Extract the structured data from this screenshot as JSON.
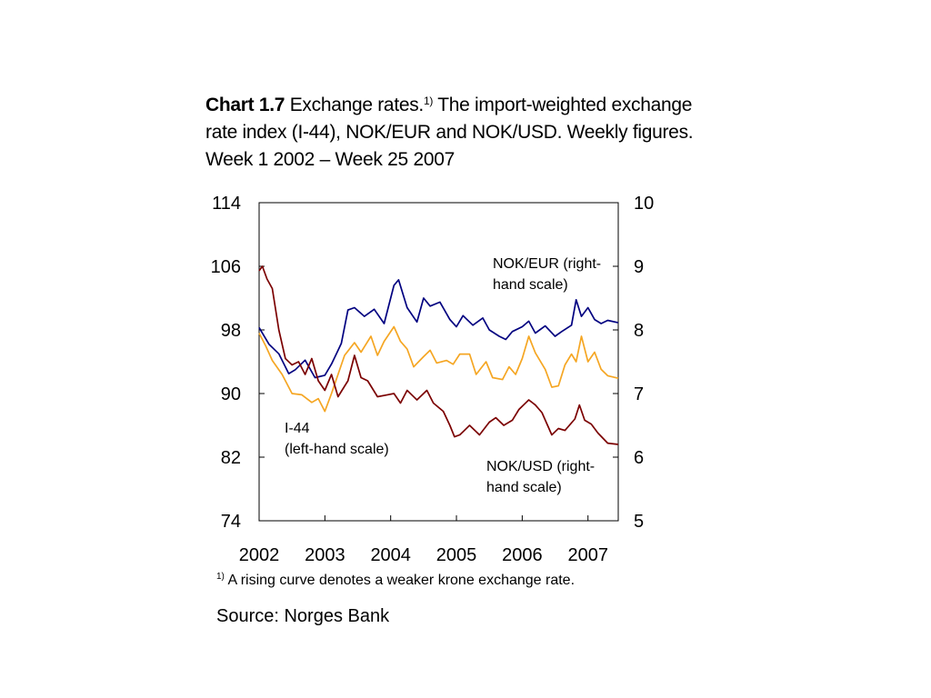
{
  "title": {
    "bold": "Chart 1.7",
    "main": " Exchange rates.",
    "sup": "1)",
    "rest": " The import-weighted exchange rate index (I-44), NOK/EUR and NOK/USD. Weekly figures. Week 1 2002 – Week 25 2007"
  },
  "footnote": {
    "sup": "1)",
    "text": " A rising curve denotes a weaker krone exchange rate."
  },
  "source": "Source: Norges Bank",
  "chart_data": {
    "type": "line",
    "x_axis": {
      "ticks": [
        "2002",
        "2003",
        "2004",
        "2005",
        "2006",
        "2007"
      ],
      "range": [
        2002.0,
        2007.46
      ]
    },
    "y_left": {
      "range": [
        74,
        114
      ],
      "ticks": [
        "74",
        "82",
        "90",
        "98",
        "106",
        "114"
      ]
    },
    "y_right": {
      "range": [
        5,
        10
      ],
      "ticks": [
        "5",
        "6",
        "7",
        "8",
        "9",
        "10"
      ]
    },
    "grid": false,
    "annotations": [
      {
        "lines": [
          "NOK/EUR (right-",
          "hand scale)"
        ],
        "series": "NOK/EUR"
      },
      {
        "lines": [
          "I-44",
          "(left-hand scale)"
        ],
        "series": "I-44"
      },
      {
        "lines": [
          "NOK/USD (right-",
          "hand scale)"
        ],
        "series": "NOK/USD"
      }
    ],
    "series": [
      {
        "axis": "left",
        "color": "#000080",
        "x": [
          2002.0,
          2002.15,
          2002.3,
          2002.45,
          2002.55,
          2002.7,
          2002.85,
          2003.0,
          2003.1,
          2003.25,
          2003.35,
          2003.45,
          2003.6,
          2003.75,
          2003.9,
          2004.05,
          2004.12,
          2004.25,
          2004.4,
          2004.5,
          2004.6,
          2004.75,
          2004.9,
          2005.0,
          2005.1,
          2005.25,
          2005.4,
          2005.5,
          2005.65,
          2005.75,
          2005.85,
          2006.0,
          2006.1,
          2006.2,
          2006.35,
          2006.5,
          2006.6,
          2006.75,
          2006.82,
          2006.9,
          2007.0,
          2007.1,
          2007.2,
          2007.3,
          2007.46
        ],
        "y": [
          98.3,
          96.2,
          95.0,
          92.5,
          93.0,
          94.2,
          92.0,
          92.3,
          93.7,
          96.3,
          100.5,
          100.8,
          99.7,
          100.6,
          98.8,
          103.6,
          104.3,
          100.8,
          99.0,
          102.0,
          101.0,
          101.5,
          99.3,
          98.4,
          99.8,
          98.6,
          99.5,
          98.0,
          97.2,
          96.8,
          97.8,
          98.4,
          99.1,
          97.6,
          98.5,
          97.2,
          97.8,
          98.6,
          101.8,
          99.7,
          100.8,
          99.3,
          98.8,
          99.2,
          98.9
        ]
      },
      {
        "axis": "right",
        "color": "#f5a623",
        "x": [
          2002.0,
          2002.1,
          2002.2,
          2002.35,
          2002.5,
          2002.65,
          2002.8,
          2002.9,
          2003.0,
          2003.1,
          2003.2,
          2003.3,
          2003.45,
          2003.55,
          2003.7,
          2003.8,
          2003.9,
          2004.05,
          2004.15,
          2004.25,
          2004.35,
          2004.5,
          2004.6,
          2004.7,
          2004.85,
          2004.95,
          2005.05,
          2005.2,
          2005.3,
          2005.45,
          2005.55,
          2005.7,
          2005.8,
          2005.9,
          2006.0,
          2006.1,
          2006.2,
          2006.35,
          2006.45,
          2006.55,
          2006.65,
          2006.75,
          2006.82,
          2006.9,
          2007.0,
          2007.1,
          2007.2,
          2007.3,
          2007.46
        ],
        "y": [
          7.95,
          7.75,
          7.52,
          7.3,
          7.0,
          6.98,
          6.86,
          6.92,
          6.72,
          7.0,
          7.3,
          7.6,
          7.8,
          7.65,
          7.9,
          7.6,
          7.82,
          8.05,
          7.82,
          7.7,
          7.42,
          7.58,
          7.68,
          7.48,
          7.52,
          7.46,
          7.62,
          7.62,
          7.3,
          7.5,
          7.25,
          7.22,
          7.42,
          7.3,
          7.55,
          7.9,
          7.64,
          7.38,
          7.1,
          7.12,
          7.45,
          7.62,
          7.5,
          7.9,
          7.5,
          7.65,
          7.38,
          7.28,
          7.24
        ]
      },
      {
        "axis": "right",
        "color": "#7b0000",
        "x": [
          2002.0,
          2002.05,
          2002.12,
          2002.2,
          2002.3,
          2002.4,
          2002.5,
          2002.6,
          2002.7,
          2002.8,
          2002.9,
          2003.0,
          2003.1,
          2003.2,
          2003.35,
          2003.45,
          2003.55,
          2003.65,
          2003.8,
          2003.95,
          2004.05,
          2004.15,
          2004.25,
          2004.4,
          2004.55,
          2004.65,
          2004.8,
          2004.9,
          2004.97,
          2005.05,
          2005.2,
          2005.35,
          2005.5,
          2005.6,
          2005.72,
          2005.85,
          2005.95,
          2006.1,
          2006.2,
          2006.3,
          2006.45,
          2006.55,
          2006.65,
          2006.8,
          2006.87,
          2006.95,
          2007.05,
          2007.15,
          2007.3,
          2007.46
        ],
        "y": [
          8.93,
          9.0,
          8.8,
          8.65,
          8.0,
          7.55,
          7.45,
          7.5,
          7.3,
          7.55,
          7.2,
          7.05,
          7.3,
          6.95,
          7.2,
          7.6,
          7.25,
          7.2,
          6.95,
          6.98,
          7.0,
          6.85,
          7.05,
          6.9,
          7.05,
          6.85,
          6.72,
          6.5,
          6.32,
          6.35,
          6.5,
          6.35,
          6.55,
          6.62,
          6.5,
          6.58,
          6.75,
          6.9,
          6.82,
          6.7,
          6.35,
          6.45,
          6.42,
          6.6,
          6.82,
          6.58,
          6.52,
          6.38,
          6.22,
          6.2
        ]
      }
    ]
  }
}
